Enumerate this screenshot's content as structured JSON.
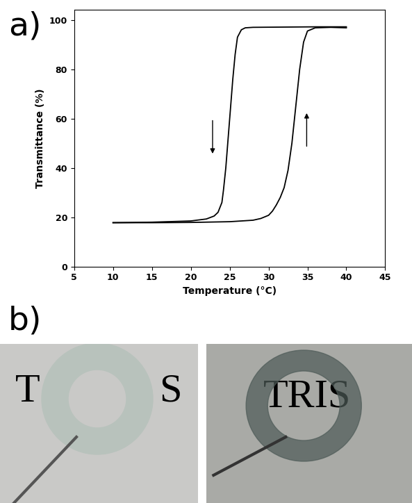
{
  "chart_data": {
    "type": "line",
    "x_label": "Temperature (°C)",
    "y_label": "Transmittance (%)",
    "xlim": [
      5,
      45
    ],
    "xticks": [
      5,
      10,
      15,
      20,
      25,
      30,
      35,
      40,
      45
    ],
    "ylim": [
      0,
      104
    ],
    "yticks": [
      0,
      20,
      40,
      60,
      80,
      100
    ],
    "grid": false,
    "series": [
      {
        "color": "#000000",
        "x": [
          10,
          15,
          20,
          25,
          28,
          29,
          30,
          30.5,
          31,
          31.5,
          32,
          32.5,
          33,
          33.5,
          34,
          34.5,
          35,
          36,
          38,
          40
        ],
        "values": [
          17.8,
          17.8,
          17.9,
          18.2,
          18.8,
          19.5,
          20.8,
          22.5,
          25,
          28,
          32,
          39,
          50,
          65,
          80,
          91,
          95.5,
          96.8,
          97,
          96.8
        ]
      },
      {
        "color": "#000000",
        "x": [
          40,
          36,
          32,
          28,
          27,
          26.5,
          26,
          25.7,
          25.4,
          25.1,
          24.8,
          24.5,
          24.2,
          24,
          23.5,
          23,
          22,
          20,
          15,
          10
        ],
        "values": [
          97.2,
          97.2,
          97.1,
          97,
          96.8,
          96,
          93,
          86,
          76,
          64,
          52,
          40,
          31,
          26,
          22,
          20.5,
          19.3,
          18.5,
          18,
          17.8
        ]
      }
    ]
  },
  "panel_labels": [
    "a)",
    "b)"
  ],
  "photos": [
    {
      "texts": [
        "T",
        "S"
      ]
    },
    {
      "texts": [
        "TRIS"
      ]
    }
  ]
}
